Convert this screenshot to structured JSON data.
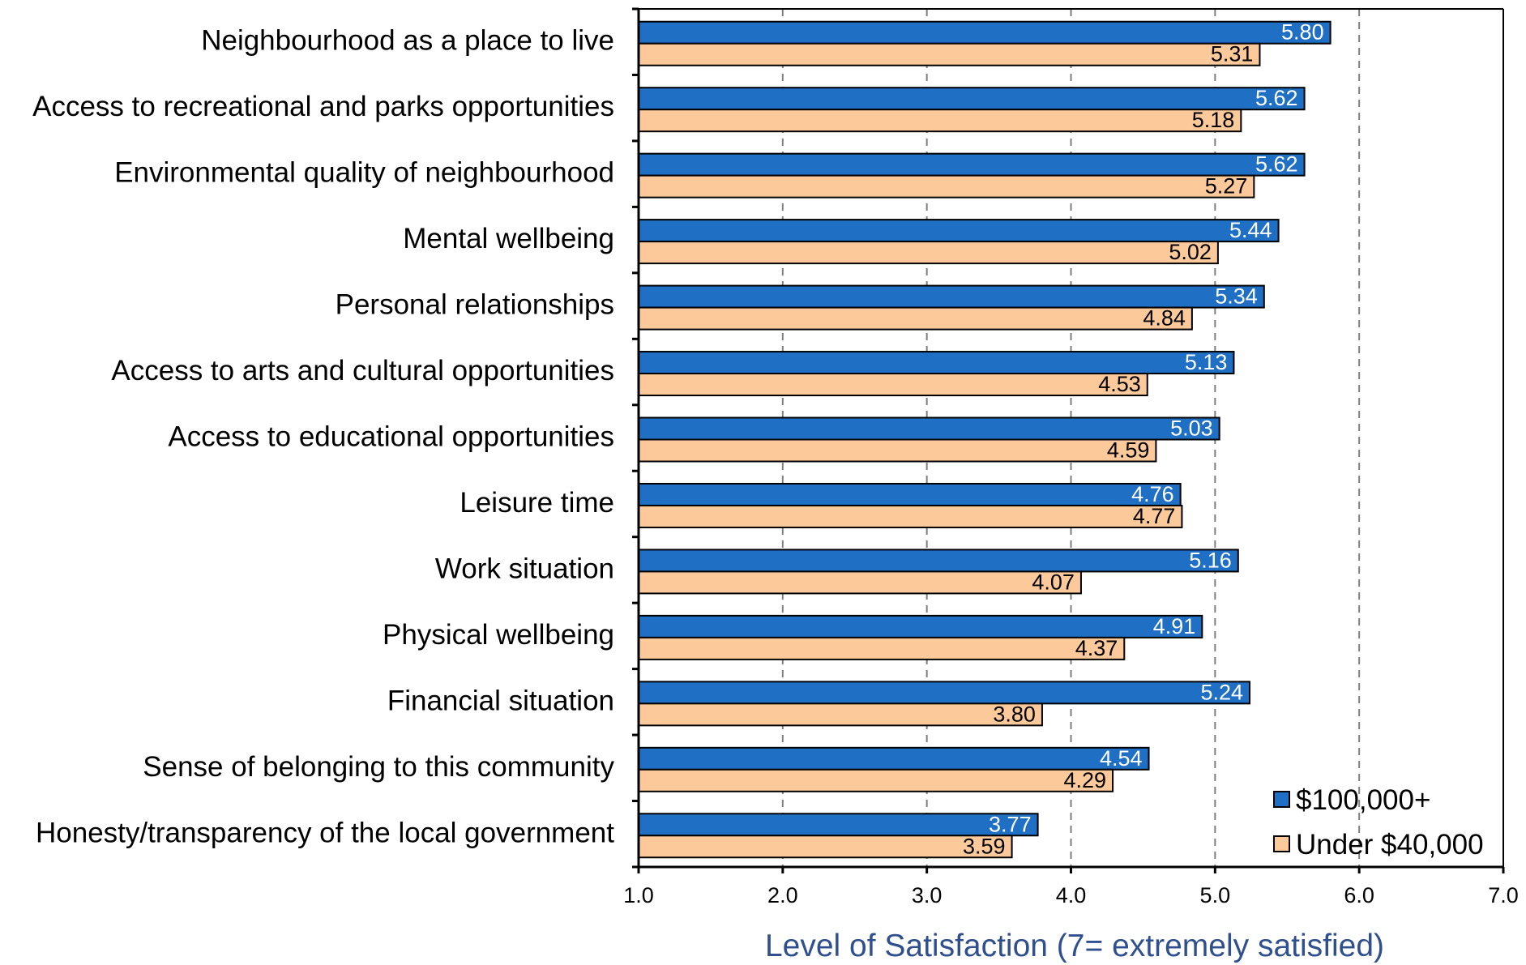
{
  "chart_data": {
    "type": "bar",
    "orientation": "horizontal",
    "categories": [
      "Neighbourhood as a place to live",
      "Access to recreational and parks opportunities",
      "Environmental quality of neighbourhood",
      "Mental wellbeing",
      "Personal relationships",
      "Access to arts and cultural opportunities",
      "Access to educational opportunities",
      "Leisure time",
      "Work situation",
      "Physical wellbeing",
      "Financial situation",
      "Sense of belonging to this community",
      "Honesty/transparency of the local government"
    ],
    "series": [
      {
        "name": "$100,000+",
        "color": "#1f6fc5",
        "values": [
          5.8,
          5.62,
          5.62,
          5.44,
          5.34,
          5.13,
          5.03,
          4.76,
          5.16,
          4.91,
          5.24,
          4.54,
          3.77
        ],
        "labels": [
          "5.80",
          "5.62",
          "5.62",
          "5.44",
          "5.34",
          "5.13",
          "5.03",
          "4.76",
          "5.16",
          "4.91",
          "5.24",
          "4.54",
          "3.77"
        ]
      },
      {
        "name": "Under $40,000",
        "color": "#fcc99b",
        "values": [
          5.31,
          5.18,
          5.27,
          5.02,
          4.84,
          4.53,
          4.59,
          4.77,
          4.07,
          4.37,
          3.8,
          4.29,
          3.59
        ],
        "labels": [
          "5.31",
          "5.18",
          "5.27",
          "5.02",
          "4.84",
          "4.53",
          "4.59",
          "4.77",
          "4.07",
          "4.37",
          "3.80",
          "4.29",
          "3.59"
        ]
      }
    ],
    "xlabel": "Level of Satisfaction (7= extremely satisfied)",
    "xlim": [
      1.0,
      7.0
    ],
    "xticks": [
      1.0,
      2.0,
      3.0,
      4.0,
      5.0,
      6.0,
      7.0
    ],
    "xtick_labels": [
      "1.0",
      "2.0",
      "3.0",
      "4.0",
      "5.0",
      "6.0",
      "7.0"
    ],
    "grid": "vertical dashed",
    "legend_position": "bottom-right"
  }
}
